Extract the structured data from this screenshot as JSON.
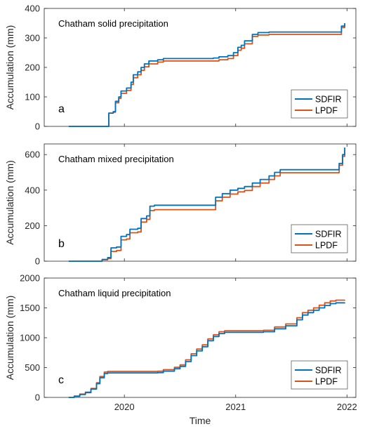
{
  "chart_data": [
    {
      "type": "line",
      "title": "Chatham solid precipitation",
      "panel_label": "a",
      "ylabel": "Accumulation (mm)",
      "ylim": [
        0,
        400
      ],
      "yticks": [
        0,
        100,
        200,
        300,
        400
      ],
      "xlim": [
        2019.28,
        2022.08
      ],
      "xticks": [
        2020,
        2021,
        2022
      ],
      "xticklabels": [
        "2020",
        "2021",
        "2022"
      ],
      "legend_position": "bottom-right",
      "series": [
        {
          "name": "SDFIR",
          "color": "#0072BD",
          "points": [
            [
              2019.5,
              0
            ],
            [
              2019.85,
              0
            ],
            [
              2019.86,
              45
            ],
            [
              2019.9,
              50
            ],
            [
              2019.92,
              85
            ],
            [
              2019.95,
              100
            ],
            [
              2019.97,
              120
            ],
            [
              2020.02,
              130
            ],
            [
              2020.06,
              150
            ],
            [
              2020.08,
              175
            ],
            [
              2020.12,
              185
            ],
            [
              2020.15,
              200
            ],
            [
              2020.18,
              212
            ],
            [
              2020.22,
              222
            ],
            [
              2020.3,
              226
            ],
            [
              2020.35,
              230
            ],
            [
              2020.8,
              232
            ],
            [
              2020.85,
              236
            ],
            [
              2020.93,
              240
            ],
            [
              2020.98,
              250
            ],
            [
              2021.02,
              268
            ],
            [
              2021.05,
              275
            ],
            [
              2021.08,
              290
            ],
            [
              2021.15,
              312
            ],
            [
              2021.2,
              318
            ],
            [
              2021.3,
              320
            ],
            [
              2021.92,
              320
            ],
            [
              2021.95,
              340
            ],
            [
              2021.98,
              350
            ]
          ]
        },
        {
          "name": "LPDF",
          "color": "#D95319",
          "points": [
            [
              2019.5,
              0
            ],
            [
              2019.85,
              0
            ],
            [
              2019.86,
              45
            ],
            [
              2019.9,
              48
            ],
            [
              2019.92,
              80
            ],
            [
              2019.95,
              95
            ],
            [
              2019.97,
              112
            ],
            [
              2020.02,
              122
            ],
            [
              2020.06,
              142
            ],
            [
              2020.08,
              165
            ],
            [
              2020.12,
              175
            ],
            [
              2020.15,
              190
            ],
            [
              2020.18,
              202
            ],
            [
              2020.22,
              212
            ],
            [
              2020.3,
              218
            ],
            [
              2020.35,
              222
            ],
            [
              2020.8,
              222
            ],
            [
              2020.85,
              226
            ],
            [
              2020.93,
              230
            ],
            [
              2020.98,
              240
            ],
            [
              2021.02,
              258
            ],
            [
              2021.05,
              265
            ],
            [
              2021.08,
              280
            ],
            [
              2021.15,
              305
            ],
            [
              2021.2,
              310
            ],
            [
              2021.3,
              312
            ],
            [
              2021.92,
              312
            ],
            [
              2021.95,
              335
            ],
            [
              2021.98,
              345
            ]
          ]
        }
      ]
    },
    {
      "type": "line",
      "title": "Chatham mixed precipitation",
      "panel_label": "b",
      "ylabel": "Accumulation (mm)",
      "ylim": [
        0,
        660
      ],
      "yticks": [
        0,
        200,
        400,
        600
      ],
      "xlim": [
        2019.28,
        2022.08
      ],
      "xticks": [
        2020,
        2021,
        2022
      ],
      "xticklabels": [
        "2020",
        "2021",
        "2022"
      ],
      "legend_position": "bottom-right",
      "series": [
        {
          "name": "SDFIR",
          "color": "#0072BD",
          "points": [
            [
              2019.5,
              0
            ],
            [
              2019.75,
              0
            ],
            [
              2019.8,
              10
            ],
            [
              2019.85,
              20
            ],
            [
              2019.88,
              75
            ],
            [
              2019.93,
              80
            ],
            [
              2019.97,
              140
            ],
            [
              2020.02,
              150
            ],
            [
              2020.05,
              180
            ],
            [
              2020.12,
              185
            ],
            [
              2020.15,
              240
            ],
            [
              2020.2,
              255
            ],
            [
              2020.23,
              310
            ],
            [
              2020.27,
              315
            ],
            [
              2020.8,
              315
            ],
            [
              2020.82,
              360
            ],
            [
              2020.88,
              380
            ],
            [
              2020.95,
              400
            ],
            [
              2021.02,
              410
            ],
            [
              2021.08,
              420
            ],
            [
              2021.15,
              440
            ],
            [
              2021.22,
              460
            ],
            [
              2021.3,
              480
            ],
            [
              2021.35,
              500
            ],
            [
              2021.4,
              515
            ],
            [
              2021.9,
              515
            ],
            [
              2021.93,
              550
            ],
            [
              2021.96,
              600
            ],
            [
              2021.98,
              640
            ]
          ]
        },
        {
          "name": "LPDF",
          "color": "#D95319",
          "points": [
            [
              2019.5,
              0
            ],
            [
              2019.75,
              0
            ],
            [
              2019.8,
              8
            ],
            [
              2019.85,
              15
            ],
            [
              2019.88,
              55
            ],
            [
              2019.93,
              60
            ],
            [
              2019.97,
              120
            ],
            [
              2020.02,
              125
            ],
            [
              2020.05,
              160
            ],
            [
              2020.12,
              165
            ],
            [
              2020.15,
              220
            ],
            [
              2020.2,
              235
            ],
            [
              2020.23,
              285
            ],
            [
              2020.27,
              290
            ],
            [
              2020.8,
              290
            ],
            [
              2020.82,
              340
            ],
            [
              2020.88,
              360
            ],
            [
              2020.95,
              378
            ],
            [
              2021.02,
              390
            ],
            [
              2021.08,
              398
            ],
            [
              2021.15,
              420
            ],
            [
              2021.22,
              440
            ],
            [
              2021.3,
              460
            ],
            [
              2021.35,
              480
            ],
            [
              2021.4,
              498
            ],
            [
              2021.9,
              498
            ],
            [
              2021.93,
              540
            ],
            [
              2021.96,
              590
            ],
            [
              2021.98,
              625
            ]
          ]
        }
      ]
    },
    {
      "type": "line",
      "title": "Chatham liquid precipitation",
      "panel_label": "c",
      "ylabel": "Accumulation (mm)",
      "xlabel": "Time",
      "ylim": [
        0,
        2000
      ],
      "yticks": [
        0,
        500,
        1000,
        1500,
        2000
      ],
      "xlim": [
        2019.28,
        2022.08
      ],
      "xticks": [
        2020,
        2021,
        2022
      ],
      "xticklabels": [
        "2020",
        "2021",
        "2022"
      ],
      "legend_position": "bottom-right",
      "series": [
        {
          "name": "SDFIR",
          "color": "#0072BD",
          "points": [
            [
              2019.5,
              0
            ],
            [
              2019.55,
              20
            ],
            [
              2019.6,
              50
            ],
            [
              2019.65,
              80
            ],
            [
              2019.7,
              140
            ],
            [
              2019.75,
              230
            ],
            [
              2019.78,
              330
            ],
            [
              2019.82,
              400
            ],
            [
              2019.85,
              410
            ],
            [
              2020.3,
              415
            ],
            [
              2020.35,
              440
            ],
            [
              2020.45,
              480
            ],
            [
              2020.5,
              520
            ],
            [
              2020.55,
              600
            ],
            [
              2020.6,
              700
            ],
            [
              2020.65,
              780
            ],
            [
              2020.7,
              850
            ],
            [
              2020.75,
              950
            ],
            [
              2020.8,
              1020
            ],
            [
              2020.85,
              1070
            ],
            [
              2020.9,
              1090
            ],
            [
              2021.25,
              1100
            ],
            [
              2021.35,
              1150
            ],
            [
              2021.45,
              1200
            ],
            [
              2021.55,
              1300
            ],
            [
              2021.6,
              1380
            ],
            [
              2021.65,
              1420
            ],
            [
              2021.7,
              1460
            ],
            [
              2021.75,
              1500
            ],
            [
              2021.8,
              1540
            ],
            [
              2021.85,
              1570
            ],
            [
              2021.9,
              1585
            ],
            [
              2021.98,
              1590
            ]
          ]
        },
        {
          "name": "LPDF",
          "color": "#D95319",
          "points": [
            [
              2019.5,
              0
            ],
            [
              2019.55,
              22
            ],
            [
              2019.6,
              55
            ],
            [
              2019.65,
              88
            ],
            [
              2019.7,
              150
            ],
            [
              2019.75,
              245
            ],
            [
              2019.78,
              350
            ],
            [
              2019.82,
              425
            ],
            [
              2019.85,
              435
            ],
            [
              2020.3,
              440
            ],
            [
              2020.35,
              465
            ],
            [
              2020.45,
              505
            ],
            [
              2020.5,
              545
            ],
            [
              2020.55,
              630
            ],
            [
              2020.6,
              730
            ],
            [
              2020.65,
              810
            ],
            [
              2020.7,
              880
            ],
            [
              2020.75,
              980
            ],
            [
              2020.8,
              1050
            ],
            [
              2020.85,
              1100
            ],
            [
              2020.9,
              1115
            ],
            [
              2021.25,
              1125
            ],
            [
              2021.35,
              1180
            ],
            [
              2021.45,
              1230
            ],
            [
              2021.55,
              1335
            ],
            [
              2021.6,
              1420
            ],
            [
              2021.65,
              1460
            ],
            [
              2021.7,
              1500
            ],
            [
              2021.75,
              1545
            ],
            [
              2021.8,
              1585
            ],
            [
              2021.85,
              1615
            ],
            [
              2021.9,
              1630
            ],
            [
              2021.98,
              1635
            ]
          ]
        }
      ]
    }
  ]
}
